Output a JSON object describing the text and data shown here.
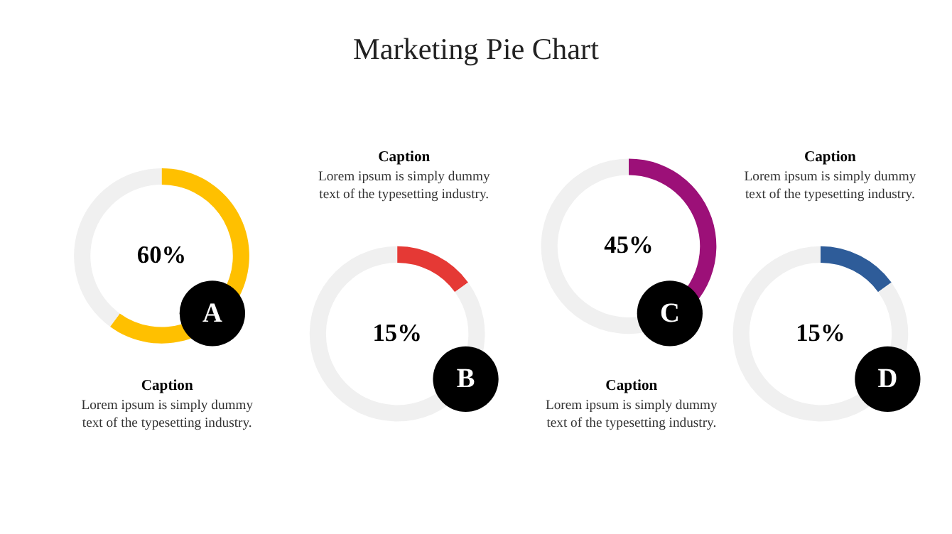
{
  "chart_data": [
    {
      "type": "donut",
      "title": "Marketing Pie Chart",
      "categories": [
        null,
        null
      ],
      "values": [
        60,
        40
      ],
      "colors": [
        "#ffc000",
        "#f0f0f0"
      ],
      "value_labels": [
        "60%",
        null
      ],
      "annotations": [
        "A",
        "Caption",
        "Lorem ipsum is simply dummy\ntext of the typesetting industry."
      ]
    },
    {
      "type": "donut",
      "categories": [
        null,
        null
      ],
      "values": [
        15,
        85
      ],
      "colors": [
        "#e53935",
        "#f0f0f0"
      ],
      "value_labels": [
        "15%",
        null
      ],
      "annotations": [
        "B",
        "Caption",
        "Lorem ipsum is simply dummy\ntext of the typesetting industry."
      ]
    },
    {
      "type": "donut",
      "categories": [
        null,
        null
      ],
      "values": [
        45,
        55
      ],
      "colors": [
        "#9c1078",
        "#f0f0f0"
      ],
      "value_labels": [
        "45%",
        null
      ],
      "annotations": [
        "C",
        "Caption",
        "Lorem ipsum is simply dummy\ntext of the typesetting industry."
      ]
    },
    {
      "type": "donut",
      "categories": [
        null,
        null
      ],
      "values": [
        15,
        85
      ],
      "colors": [
        "#2e5c99",
        "#f0f0f0"
      ],
      "value_labels": [
        "15%",
        null
      ],
      "annotations": [
        "D",
        "Caption",
        "Lorem ipsum is simply dummy\ntext of the typesetting industry."
      ]
    }
  ]
}
